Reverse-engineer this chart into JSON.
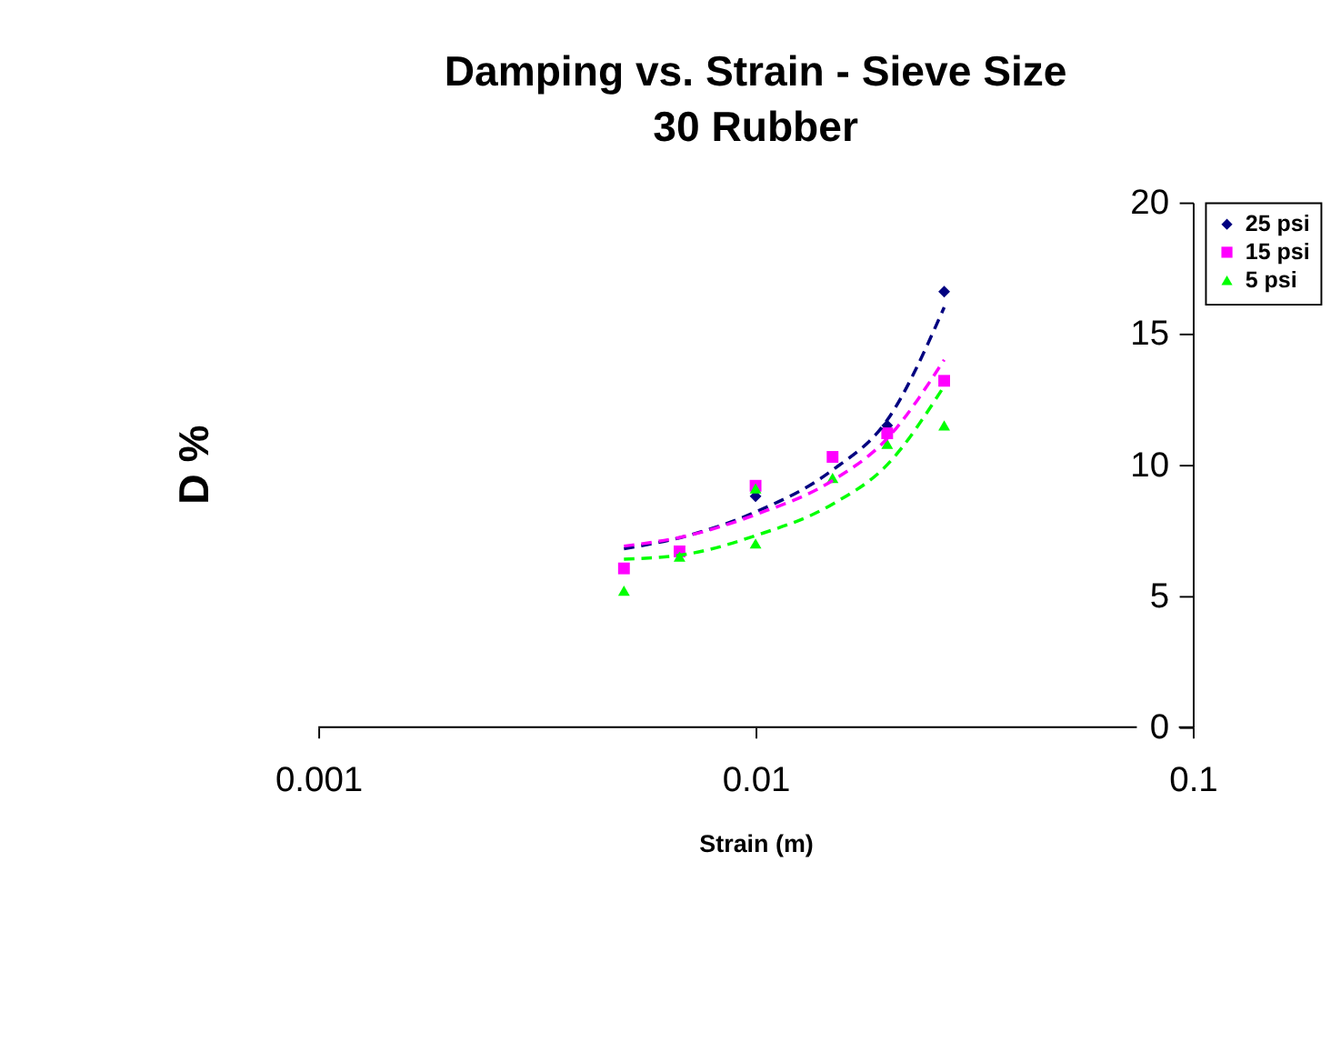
{
  "chart_data": {
    "type": "scatter",
    "title": [
      "Damping vs. Strain - Sieve Size",
      "30 Rubber"
    ],
    "xlabel": "Strain (m)",
    "ylabel": "D %",
    "log": "x",
    "xlim": [
      0.001,
      0.1
    ],
    "xticks": [
      0.001,
      0.01,
      0.1
    ],
    "ylim": [
      0,
      20
    ],
    "yticks": [
      0,
      5,
      10,
      15,
      20
    ],
    "grid": false,
    "legend": "right",
    "series": [
      {
        "name": "25 psi",
        "color": "#000080",
        "marker": "diamond",
        "x": [
          0.01,
          0.02,
          0.027
        ],
        "values": [
          8.8,
          11.5,
          16.6
        ]
      },
      {
        "name": "15 psi",
        "color": "#ff00ff",
        "marker": "square",
        "x": [
          0.005,
          0.0067,
          0.01,
          0.015,
          0.02,
          0.027
        ],
        "values": [
          6.05,
          6.7,
          9.2,
          10.3,
          11.2,
          13.2
        ]
      },
      {
        "name": "5 psi",
        "color": "#00ff00",
        "marker": "triangle",
        "x": [
          0.005,
          0.0067,
          0.01,
          0.01,
          0.015,
          0.02,
          0.027
        ],
        "values": [
          5.2,
          6.5,
          7.0,
          9.1,
          9.5,
          10.8,
          11.5
        ]
      },
      {
        "type": "line",
        "color": "#000080",
        "line_style": "dashed",
        "x": [
          0.005,
          0.007,
          0.01,
          0.015,
          0.02,
          0.027
        ],
        "values": [
          6.8,
          7.3,
          8.2,
          9.8,
          11.7,
          16.0
        ]
      },
      {
        "type": "line",
        "color": "#ff00ff",
        "line_style": "dashed",
        "x": [
          0.005,
          0.007,
          0.01,
          0.015,
          0.02,
          0.027
        ],
        "values": [
          6.9,
          7.3,
          8.1,
          9.4,
          11.0,
          14.0
        ]
      },
      {
        "type": "line",
        "color": "#00ff00",
        "line_style": "dashed",
        "x": [
          0.005,
          0.007,
          0.01,
          0.015,
          0.02,
          0.027
        ],
        "values": [
          6.4,
          6.6,
          7.3,
          8.5,
          10.0,
          13.0
        ]
      }
    ]
  }
}
